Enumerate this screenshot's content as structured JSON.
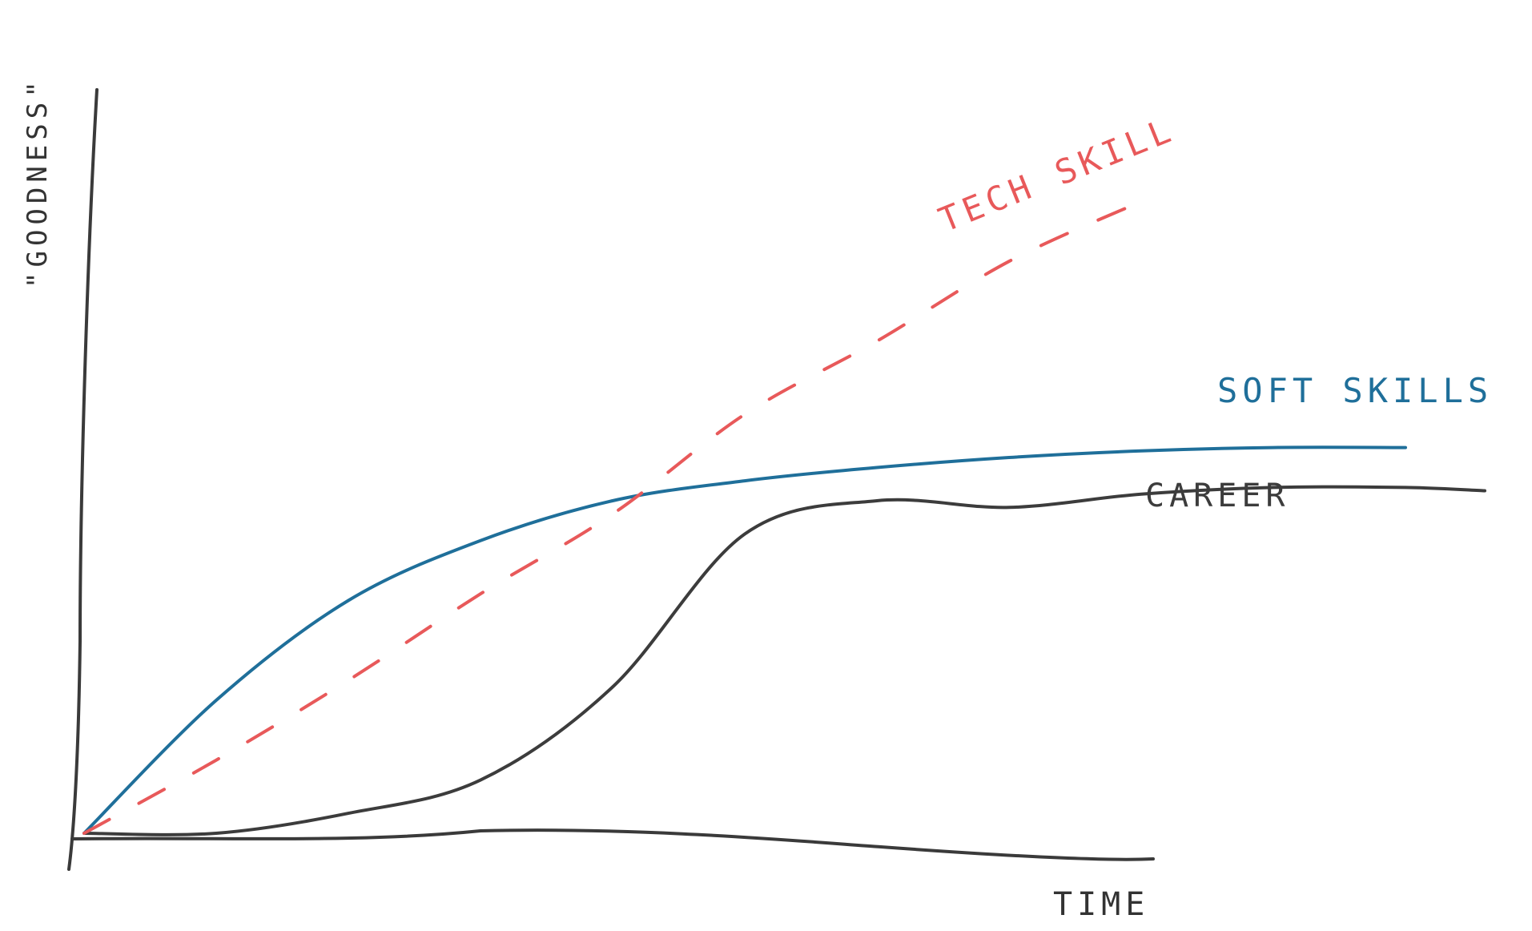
{
  "chart_data": {
    "type": "line",
    "title": "",
    "xlabel": "TIME",
    "ylabel": "\"GOODNESS\"",
    "xlim": [
      0,
      10
    ],
    "ylim": [
      0,
      10
    ],
    "grid": false,
    "legend": "inline-labels",
    "series": [
      {
        "name": "TECH SKILL",
        "color": "#e8595a",
        "style": "dashed",
        "x": [
          0,
          1,
          2,
          3,
          4,
          5,
          6,
          7,
          8
        ],
        "y": [
          0,
          1.1,
          2.3,
          3.6,
          4.8,
          6.3,
          7.4,
          8.6,
          9.5
        ]
      },
      {
        "name": "SOFT SKILLS",
        "color": "#1f6f9a",
        "style": "solid",
        "x": [
          0,
          1,
          2,
          3,
          4,
          5,
          6,
          7,
          8,
          9,
          10
        ],
        "y": [
          0,
          2.0,
          3.5,
          4.4,
          5.0,
          5.3,
          5.5,
          5.65,
          5.75,
          5.8,
          5.8
        ]
      },
      {
        "name": "CAREER",
        "color": "#3c3c3c",
        "style": "solid",
        "x": [
          0,
          1,
          2,
          3,
          4,
          5,
          6,
          7,
          8,
          9,
          10,
          10.6
        ],
        "y": [
          0,
          0,
          0.3,
          0.8,
          2.2,
          4.5,
          5.0,
          4.9,
          5.1,
          5.2,
          5.2,
          5.15
        ]
      }
    ]
  }
}
